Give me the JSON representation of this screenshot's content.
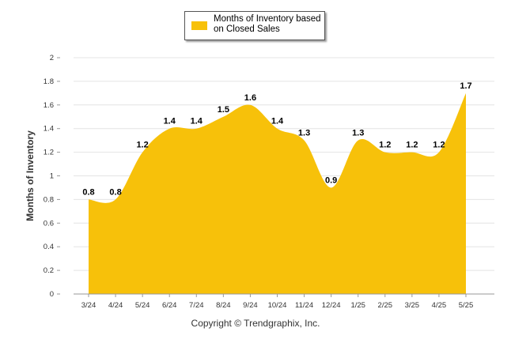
{
  "chart_data": {
    "type": "area",
    "categories": [
      "3/24",
      "4/24",
      "5/24",
      "6/24",
      "7/24",
      "8/24",
      "9/24",
      "10/24",
      "11/24",
      "12/24",
      "1/25",
      "2/25",
      "3/25",
      "4/25",
      "5/25"
    ],
    "series": [
      {
        "name": "Months of Inventory based on Closed Sales",
        "values": [
          0.8,
          0.8,
          1.2,
          1.4,
          1.4,
          1.5,
          1.6,
          1.4,
          1.3,
          0.9,
          1.3,
          1.2,
          1.2,
          1.2,
          1.7
        ],
        "color": "#F7C10A"
      }
    ],
    "ylabel": "Months of Inventory",
    "xlabel": "",
    "ylim": [
      0,
      2
    ],
    "yticks": [
      "0",
      "0.2",
      "0.4",
      "0.6",
      "0.8",
      "1",
      "1.2",
      "1.4",
      "1.6",
      "1.8",
      "2"
    ],
    "grid": true,
    "legend_position": "top-center",
    "data_labels": [
      "0.8",
      "0.8",
      "1.2",
      "1.4",
      "1.4",
      "1.5",
      "1.6",
      "1.4",
      "1.3",
      "0.9",
      "1.3",
      "1.2",
      "1.2",
      "1.2",
      "1.7"
    ]
  },
  "legend": {
    "label": "Months of Inventory based on Closed Sales"
  },
  "footer": {
    "copyright": "Copyright © Trendgraphix, Inc."
  }
}
